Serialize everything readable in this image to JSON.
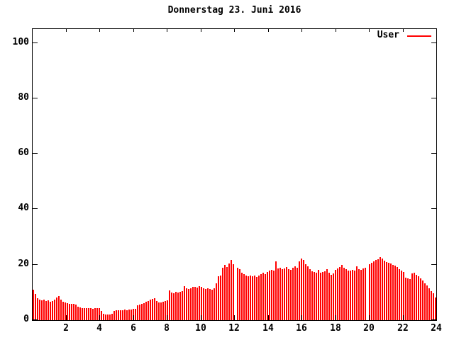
{
  "title": "Donnerstag 23. Juni 2016",
  "legend": {
    "label": "User",
    "color": "#ff0000",
    "position": "top-right"
  },
  "colors": {
    "bar": "#ff0000",
    "axis": "#000000",
    "background": "#ffffff",
    "text": "#000000"
  },
  "chart_data": {
    "type": "bar",
    "title": "Donnerstag 23. Juni 2016",
    "xlabel": "",
    "ylabel": "",
    "x_unit": "hour_of_day",
    "x_range": [
      0,
      24
    ],
    "ylim": [
      0,
      105
    ],
    "grid": false,
    "legend_position": "top-right",
    "xticks": [
      2,
      4,
      6,
      8,
      10,
      12,
      14,
      16,
      18,
      20,
      22,
      24
    ],
    "yticks": [
      0,
      20,
      40,
      60,
      80,
      100
    ],
    "samples": 190,
    "sample_step_hours": 0.1263,
    "gaps_at_indices": [
      95,
      157
    ],
    "series": [
      {
        "name": "User",
        "color": "#ff0000",
        "values": [
          11.0,
          9.5,
          7.8,
          7.4,
          7.2,
          7.5,
          6.9,
          7.2,
          6.7,
          7.0,
          7.3,
          8.3,
          8.8,
          7.4,
          6.7,
          6.3,
          6.1,
          6.0,
          5.9,
          5.8,
          5.7,
          4.9,
          4.5,
          4.4,
          4.3,
          4.4,
          4.3,
          4.4,
          4.2,
          4.3,
          4.4,
          4.3,
          3.2,
          2.2,
          2.0,
          2.1,
          2.0,
          2.2,
          3.4,
          3.6,
          3.5,
          3.7,
          3.6,
          3.8,
          3.7,
          3.9,
          3.8,
          4.0,
          4.2,
          5.3,
          5.6,
          5.8,
          6.2,
          6.6,
          7.0,
          7.4,
          7.7,
          7.9,
          6.8,
          6.5,
          6.4,
          6.6,
          6.9,
          7.2,
          10.7,
          10.0,
          9.8,
          10.1,
          9.9,
          10.2,
          10.6,
          12.3,
          11.4,
          11.2,
          11.5,
          11.9,
          12.1,
          11.8,
          12.2,
          11.9,
          11.6,
          11.3,
          11.5,
          11.2,
          11.0,
          11.4,
          13.4,
          15.8,
          16.2,
          18.8,
          19.8,
          19.2,
          20.5,
          21.8,
          20.3,
          0,
          19.0,
          18.4,
          17.2,
          16.5,
          16.0,
          15.8,
          16.2,
          15.9,
          16.1,
          15.7,
          16.0,
          16.6,
          17.0,
          16.7,
          17.3,
          17.8,
          18.2,
          17.9,
          21.1,
          18.6,
          18.9,
          18.4,
          18.7,
          19.2,
          18.5,
          18.1,
          18.8,
          19.5,
          18.9,
          21.3,
          22.1,
          21.7,
          20.3,
          19.4,
          18.5,
          17.6,
          17.3,
          17.1,
          18.2,
          17.0,
          17.4,
          17.7,
          18.5,
          17.0,
          16.4,
          16.9,
          18.1,
          18.6,
          19.1,
          19.8,
          18.8,
          18.3,
          18.0,
          17.8,
          18.2,
          18.0,
          19.4,
          18.3,
          18.1,
          18.6,
          18.9,
          0,
          20.3,
          20.8,
          21.2,
          21.6,
          22.0,
          22.8,
          22.2,
          21.4,
          20.9,
          20.7,
          20.4,
          20.0,
          19.6,
          19.2,
          18.4,
          17.8,
          17.4,
          15.4,
          15.0,
          14.8,
          16.8,
          17.0,
          16.4,
          15.8,
          15.2,
          14.4,
          13.2,
          12.4,
          11.6,
          10.6,
          9.8,
          8.2
        ]
      }
    ]
  }
}
